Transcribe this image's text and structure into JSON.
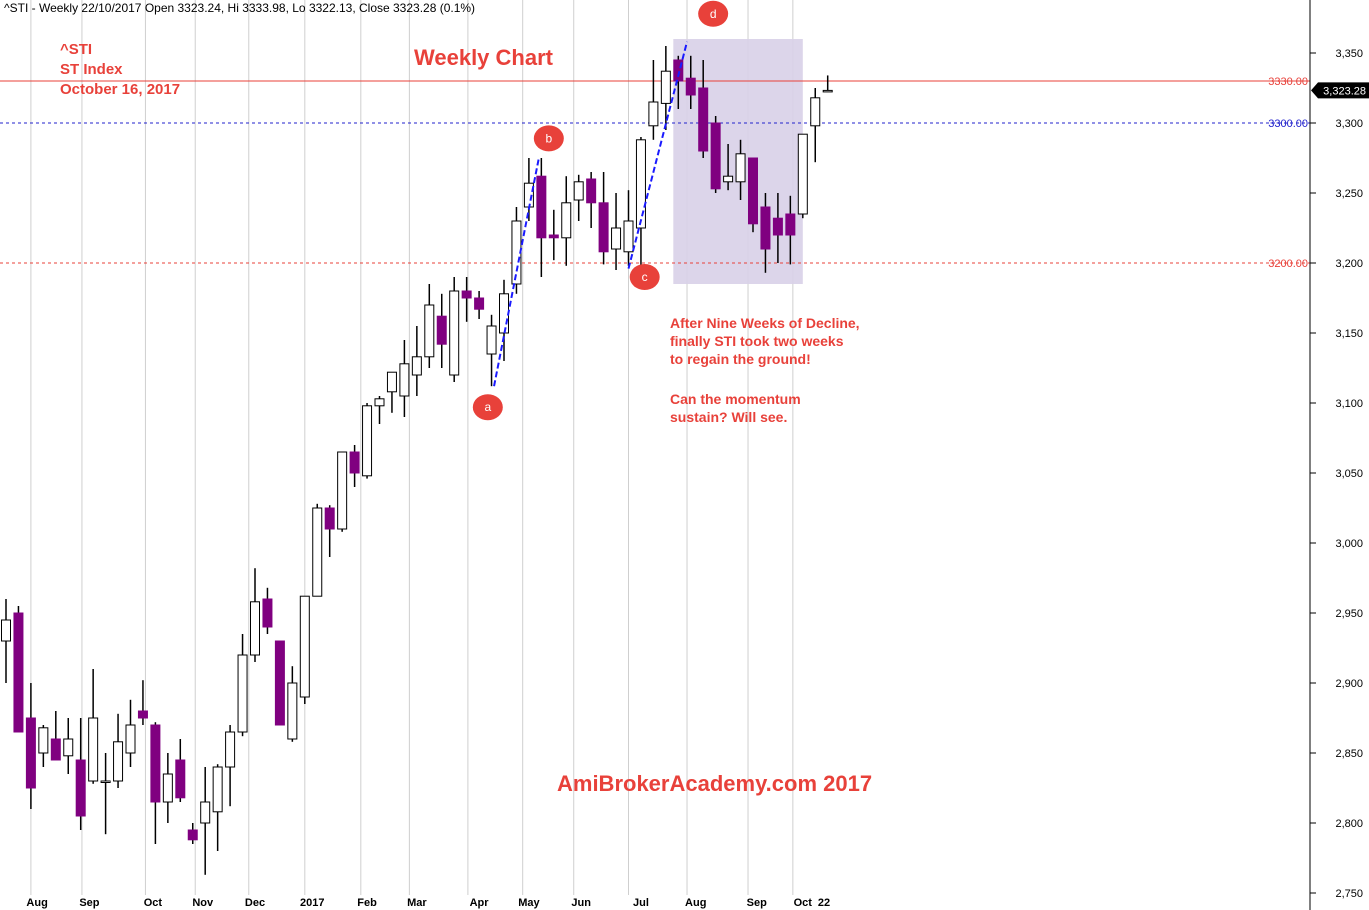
{
  "header": {
    "title": "^STI - Weekly 22/10/2017 Open 3323.24, Hi 3333.98, Lo 3322.13, Close 3323.28 (0.1%)"
  },
  "annotations": {
    "symbol": "^STI",
    "name": "ST Index",
    "date": "October 16, 2017",
    "chart_label": "Weekly Chart",
    "note_lines": [
      "After Nine Weeks of Decline,",
      "finally STI took two weeks",
      "to regain the ground!",
      "",
      "Can the momentum",
      "sustain? Will see."
    ],
    "watermark": "AmiBrokerAcademy.com  2017",
    "points": [
      "a",
      "b",
      "c",
      "d"
    ]
  },
  "price_lines": [
    {
      "value": 3330,
      "label": "3330.00",
      "color": "#e8413a",
      "style": "solid"
    },
    {
      "value": 3300,
      "label": "3300.00",
      "color": "#2222cc",
      "style": "dashed"
    },
    {
      "value": 3200,
      "label": "3200.00",
      "color": "#e8413a",
      "style": "dashed"
    }
  ],
  "last_price_label": "3,323.28",
  "colors": {
    "up_fill": "#ffffff",
    "down_fill": "#800080",
    "wick": "#000000",
    "box_fill": "#d8d0e8",
    "trend_line": "#1a1aff",
    "accent_red": "#e8413a"
  },
  "chart_data": {
    "type": "candlestick",
    "title": "^STI - Weekly 22/10/2017 Open 3323.24, Hi 3333.98, Lo 3322.13, Close 3323.28 (0.1%)",
    "ylim": [
      2750,
      3370
    ],
    "y_ticks": [
      "2,750",
      "2,800",
      "2,850",
      "2,900",
      "2,950",
      "3,000",
      "3,050",
      "3,100",
      "3,150",
      "3,200",
      "3,250",
      "3,300",
      "3,350"
    ],
    "y_tick_values": [
      2750,
      2800,
      2850,
      2900,
      2950,
      3000,
      3050,
      3100,
      3150,
      3200,
      3250,
      3300,
      3350
    ],
    "x_labels": [
      {
        "label": "Aug",
        "index": 2.5
      },
      {
        "label": "Sep",
        "index": 6.7
      },
      {
        "label": "Oct",
        "index": 11.8
      },
      {
        "label": "Nov",
        "index": 15.8
      },
      {
        "label": "Dec",
        "index": 20
      },
      {
        "label": "2017",
        "index": 24.6
      },
      {
        "label": "Feb",
        "index": 29
      },
      {
        "label": "Mar",
        "index": 33
      },
      {
        "label": "Apr",
        "index": 38
      },
      {
        "label": "May",
        "index": 42
      },
      {
        "label": "Jun",
        "index": 46.2
      },
      {
        "label": "Jul",
        "index": 51
      },
      {
        "label": "Aug",
        "index": 55.4
      },
      {
        "label": "Sep",
        "index": 60.3
      },
      {
        "label": "Oct",
        "index": 64
      },
      {
        "label": "22",
        "index": 65.7
      }
    ],
    "grid_indices": [
      2,
      6.1,
      11.2,
      15.2,
      19.5,
      24,
      28.5,
      32.4,
      37.1,
      41.5,
      45.6,
      50,
      54.7,
      59.6,
      63.2
    ],
    "candles": [
      {
        "o": 2930,
        "h": 2960,
        "l": 2900,
        "c": 2945
      },
      {
        "o": 2950,
        "h": 2955,
        "l": 2865,
        "c": 2865
      },
      {
        "o": 2875,
        "h": 2900,
        "l": 2810,
        "c": 2825
      },
      {
        "o": 2850,
        "h": 2870,
        "l": 2840,
        "c": 2868
      },
      {
        "o": 2860,
        "h": 2880,
        "l": 2845,
        "c": 2845
      },
      {
        "o": 2848,
        "h": 2875,
        "l": 2835,
        "c": 2860
      },
      {
        "o": 2845,
        "h": 2875,
        "l": 2795,
        "c": 2805
      },
      {
        "o": 2830,
        "h": 2910,
        "l": 2828,
        "c": 2875
      },
      {
        "o": 2830,
        "h": 2850,
        "l": 2792,
        "c": 2830
      },
      {
        "o": 2830,
        "h": 2878,
        "l": 2825,
        "c": 2858
      },
      {
        "o": 2850,
        "h": 2888,
        "l": 2840,
        "c": 2870
      },
      {
        "o": 2880,
        "h": 2902,
        "l": 2870,
        "c": 2875
      },
      {
        "o": 2870,
        "h": 2872,
        "l": 2785,
        "c": 2815
      },
      {
        "o": 2815,
        "h": 2850,
        "l": 2800,
        "c": 2835
      },
      {
        "o": 2845,
        "h": 2860,
        "l": 2815,
        "c": 2818
      },
      {
        "o": 2795,
        "h": 2800,
        "l": 2785,
        "c": 2788
      },
      {
        "o": 2800,
        "h": 2840,
        "l": 2763,
        "c": 2815
      },
      {
        "o": 2808,
        "h": 2842,
        "l": 2780,
        "c": 2840
      },
      {
        "o": 2840,
        "h": 2870,
        "l": 2812,
        "c": 2865
      },
      {
        "o": 2865,
        "h": 2935,
        "l": 2862,
        "c": 2920
      },
      {
        "o": 2920,
        "h": 2982,
        "l": 2915,
        "c": 2958
      },
      {
        "o": 2960,
        "h": 2968,
        "l": 2935,
        "c": 2940
      },
      {
        "o": 2930,
        "h": 2930,
        "l": 2870,
        "c": 2870
      },
      {
        "o": 2860,
        "h": 2912,
        "l": 2858,
        "c": 2900
      },
      {
        "o": 2890,
        "h": 2962,
        "l": 2885,
        "c": 2962
      },
      {
        "o": 2962,
        "h": 3028,
        "l": 2962,
        "c": 3025
      },
      {
        "o": 3025,
        "h": 3027,
        "l": 2990,
        "c": 3010
      },
      {
        "o": 3010,
        "h": 3065,
        "l": 3008,
        "c": 3065
      },
      {
        "o": 3065,
        "h": 3070,
        "l": 3040,
        "c": 3050
      },
      {
        "o": 3048,
        "h": 3100,
        "l": 3046,
        "c": 3098
      },
      {
        "o": 3098,
        "h": 3105,
        "l": 3085,
        "c": 3103
      },
      {
        "o": 3108,
        "h": 3120,
        "l": 3093,
        "c": 3122
      },
      {
        "o": 3105,
        "h": 3145,
        "l": 3090,
        "c": 3128
      },
      {
        "o": 3120,
        "h": 3155,
        "l": 3105,
        "c": 3133
      },
      {
        "o": 3133,
        "h": 3185,
        "l": 3125,
        "c": 3170
      },
      {
        "o": 3162,
        "h": 3178,
        "l": 3125,
        "c": 3142
      },
      {
        "o": 3120,
        "h": 3190,
        "l": 3115,
        "c": 3180
      },
      {
        "o": 3180,
        "h": 3190,
        "l": 3158,
        "c": 3175
      },
      {
        "o": 3175,
        "h": 3180,
        "l": 3160,
        "c": 3167
      },
      {
        "o": 3135,
        "h": 3163,
        "l": 3112,
        "c": 3155
      },
      {
        "o": 3150,
        "h": 3188,
        "l": 3130,
        "c": 3178
      },
      {
        "o": 3185,
        "h": 3240,
        "l": 3178,
        "c": 3230
      },
      {
        "o": 3240,
        "h": 3275,
        "l": 3230,
        "c": 3257
      },
      {
        "o": 3262,
        "h": 3275,
        "l": 3190,
        "c": 3218
      },
      {
        "o": 3220,
        "h": 3238,
        "l": 3202,
        "c": 3218
      },
      {
        "o": 3218,
        "h": 3262,
        "l": 3198,
        "c": 3243
      },
      {
        "o": 3245,
        "h": 3263,
        "l": 3230,
        "c": 3258
      },
      {
        "o": 3260,
        "h": 3265,
        "l": 3225,
        "c": 3243
      },
      {
        "o": 3243,
        "h": 3265,
        "l": 3199,
        "c": 3208
      },
      {
        "o": 3210,
        "h": 3250,
        "l": 3195,
        "c": 3225
      },
      {
        "o": 3208,
        "h": 3252,
        "l": 3198,
        "c": 3230
      },
      {
        "o": 3225,
        "h": 3290,
        "l": 3198,
        "c": 3288
      },
      {
        "o": 3298,
        "h": 3345,
        "l": 3288,
        "c": 3315
      },
      {
        "o": 3314,
        "h": 3355,
        "l": 3295,
        "c": 3337
      },
      {
        "o": 3345,
        "h": 3348,
        "l": 3310,
        "c": 3330
      },
      {
        "o": 3332,
        "h": 3348,
        "l": 3310,
        "c": 3320
      },
      {
        "o": 3325,
        "h": 3345,
        "l": 3275,
        "c": 3280
      },
      {
        "o": 3300,
        "h": 3305,
        "l": 3250,
        "c": 3253
      },
      {
        "o": 3258,
        "h": 3285,
        "l": 3252,
        "c": 3262
      },
      {
        "o": 3258,
        "h": 3288,
        "l": 3245,
        "c": 3278
      },
      {
        "o": 3275,
        "h": 3275,
        "l": 3222,
        "c": 3228
      },
      {
        "o": 3240,
        "h": 3250,
        "l": 3193,
        "c": 3210
      },
      {
        "o": 3232,
        "h": 3250,
        "l": 3200,
        "c": 3220
      },
      {
        "o": 3235,
        "h": 3248,
        "l": 3199,
        "c": 3220
      },
      {
        "o": 3235,
        "h": 3292,
        "l": 3232,
        "c": 3292
      },
      {
        "o": 3298,
        "h": 3325,
        "l": 3272,
        "c": 3318
      },
      {
        "o": 3323.24,
        "h": 3333.98,
        "l": 3322.13,
        "c": 3323.28
      }
    ],
    "trend_lines": [
      {
        "from": {
          "i": 39.2,
          "v": 3112
        },
        "to": {
          "i": 42.8,
          "v": 3275
        }
      },
      {
        "from": {
          "i": 50.0,
          "v": 3196
        },
        "to": {
          "i": 54.7,
          "v": 3358
        }
      }
    ],
    "highlight_box": {
      "i_from": 53.6,
      "i_to": 64.0,
      "v_from": 3185,
      "v_to": 3360
    },
    "point_markers": [
      {
        "label": "a",
        "i": 38.7,
        "v": 3097
      },
      {
        "label": "b",
        "i": 43.6,
        "v": 3289
      },
      {
        "label": "c",
        "i": 51.3,
        "v": 3190
      },
      {
        "label": "d",
        "i": 56.8,
        "v": 3378
      }
    ]
  }
}
